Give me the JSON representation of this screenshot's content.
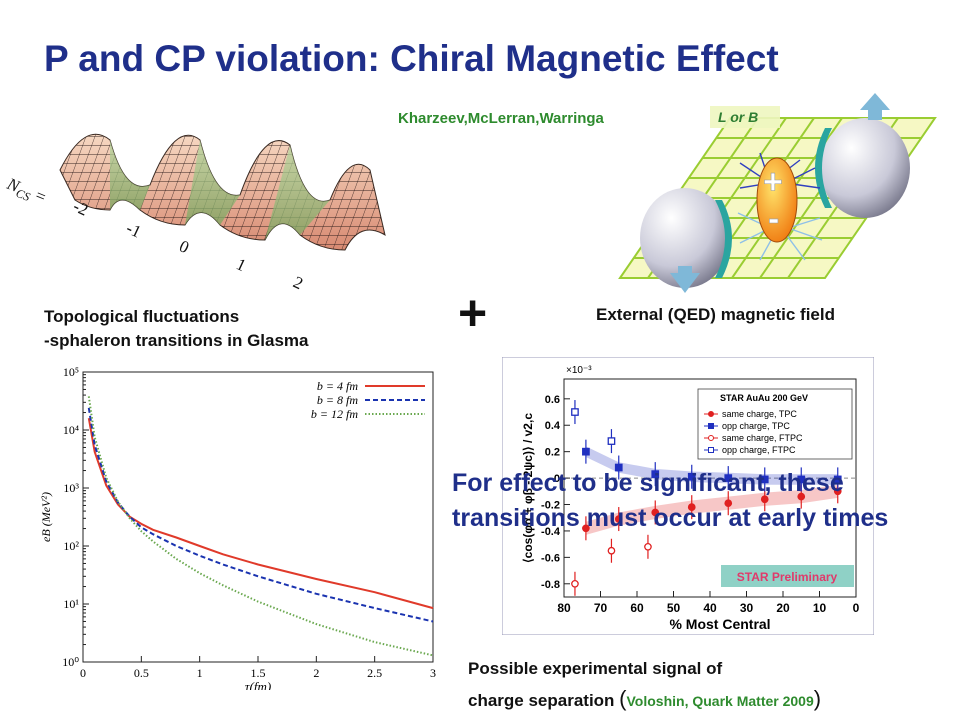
{
  "slide": {
    "title": "P and CP violation: Chiral Magnetic Effect",
    "credit_top": "Kharzeev,McLerran,Warringa",
    "topo_line1": "Topological fluctuations",
    "topo_line2": "-sphaleron transitions in Glasma",
    "plus": "+",
    "external_label": "External (QED) magnetic field",
    "signal_line1": "Possible experimental signal of",
    "signal_line2": "charge separation ",
    "signal_paren_open": "(",
    "signal_cite": "Voloshin, Quark Matter 2009",
    "signal_paren_close": ")",
    "callout": "For effect to be significant, these transitions must occur at early times"
  },
  "sphaleron": {
    "ncs_label": "N",
    "ncs_sub": "CS",
    "ncs_eq": "=",
    "ncs_values": [
      "-2",
      "-1",
      "0",
      "1",
      "2"
    ]
  },
  "heavy_ion": {
    "axis_label": "L or B",
    "charge_plus": "+",
    "charge_minus": "-"
  },
  "colors": {
    "title": "#1f2f8a",
    "credit": "#2e8b2e",
    "b4": "#e03a2a",
    "b8": "#1a33b0",
    "b12": "#6aa84f",
    "star_same": "#e02020",
    "star_opp": "#2030c0"
  },
  "chart_data": [
    {
      "type": "line",
      "ylabel": "eB (MeV²)",
      "xlabel": "τ(fm)",
      "xlim": [
        0,
        3
      ],
      "ylim": [
        1,
        100000
      ],
      "yscale": "log",
      "xticks": [
        "0",
        "0.5",
        "1",
        "1.5",
        "2",
        "2.5",
        "3"
      ],
      "yticks": [
        "10⁰",
        "10¹",
        "10²",
        "10³",
        "10⁴",
        "10⁵"
      ],
      "legend_position": "top-right",
      "series": [
        {
          "name": "b = 4 fm",
          "style": "solid",
          "x": [
            0.05,
            0.1,
            0.2,
            0.3,
            0.4,
            0.5,
            0.6,
            0.8,
            1.0,
            1.2,
            1.5,
            2.0,
            2.5,
            3.0
          ],
          "y": [
            16000,
            4200,
            1100,
            520,
            320,
            240,
            190,
            140,
            100,
            72,
            48,
            27,
            16,
            8.5
          ]
        },
        {
          "name": "b = 8 fm",
          "style": "dashed",
          "x": [
            0.05,
            0.1,
            0.2,
            0.3,
            0.4,
            0.5,
            0.6,
            0.8,
            1.0,
            1.2,
            1.5,
            2.0,
            2.5,
            3.0
          ],
          "y": [
            24000,
            5500,
            1300,
            560,
            320,
            210,
            160,
            100,
            68,
            48,
            30,
            15,
            8.5,
            5
          ]
        },
        {
          "name": "b = 12 fm",
          "style": "dotted",
          "x": [
            0.05,
            0.1,
            0.2,
            0.3,
            0.4,
            0.5,
            0.6,
            0.8,
            1.0,
            1.2,
            1.5,
            2.0,
            2.5,
            3.0
          ],
          "y": [
            38000,
            7500,
            1500,
            580,
            300,
            180,
            120,
            60,
            34,
            21,
            11,
            4.5,
            2.2,
            1.3
          ]
        }
      ]
    },
    {
      "type": "scatter",
      "ylabel": "⟨cos(φα + φβ - 2ψc)⟩ / v2,c",
      "xlabel": "% Most Central",
      "y_multiplier": "×10⁻³",
      "xlim": [
        80,
        0
      ],
      "ylim": [
        -0.9,
        0.75
      ],
      "xticks": [
        "80",
        "70",
        "60",
        "50",
        "40",
        "30",
        "20",
        "10",
        "0"
      ],
      "yticks": [
        "0.6",
        "0.4",
        "0.2",
        "0",
        "-0.2",
        "-0.4",
        "-0.6",
        "-0.8"
      ],
      "legend_position": "top-right",
      "legend_title": "STAR AuAu 200 GeV",
      "watermark": "STAR Preliminary",
      "series": [
        {
          "name": "same charge, TPC",
          "x": [
            74,
            65,
            55,
            45,
            35,
            25,
            15,
            5
          ],
          "y": [
            -0.38,
            -0.31,
            -0.26,
            -0.22,
            -0.19,
            -0.16,
            -0.14,
            -0.1
          ]
        },
        {
          "name": "opp charge, TPC",
          "x": [
            74,
            65,
            55,
            45,
            35,
            25,
            15,
            5
          ],
          "y": [
            0.2,
            0.08,
            0.03,
            0.01,
            0.0,
            -0.01,
            -0.01,
            -0.01
          ]
        },
        {
          "name": "same charge, FTPC",
          "x": [
            77,
            67,
            57
          ],
          "y": [
            -0.8,
            -0.55,
            -0.52
          ]
        },
        {
          "name": "opp charge, FTPC",
          "x": [
            77,
            67
          ],
          "y": [
            0.5,
            0.28
          ]
        }
      ]
    }
  ]
}
